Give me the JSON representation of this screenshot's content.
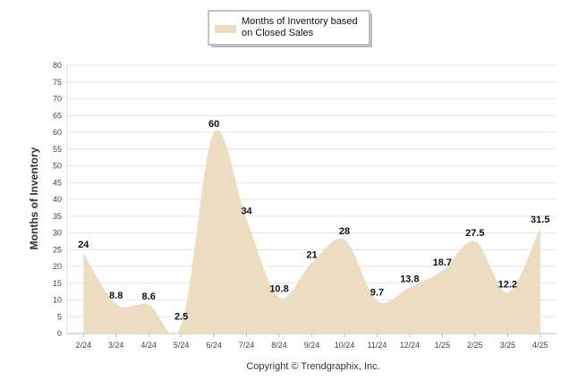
{
  "chart_data": {
    "type": "area",
    "categories": [
      "2/24",
      "3/24",
      "4/24",
      "5/24",
      "6/24",
      "7/24",
      "8/24",
      "9/24",
      "10/24",
      "11/24",
      "12/24",
      "1/25",
      "2/25",
      "3/25",
      "4/25"
    ],
    "series": [
      {
        "name": "Months of Inventory based on Closed Sales",
        "legend_lines": [
          "Months of Inventory based",
          "on Closed Sales"
        ],
        "values": [
          24,
          8.8,
          8.6,
          2.5,
          60,
          34,
          10.8,
          21,
          28,
          9.7,
          13.8,
          18.7,
          27.5,
          12.2,
          31.5
        ],
        "labels": [
          "24",
          "8.8",
          "8.6",
          "2.5",
          "60",
          "34",
          "10.8",
          "21",
          "28",
          "9.7",
          "13.8",
          "18.7",
          "27.5",
          "12.2",
          "31.5"
        ],
        "color": "#ecdcc0"
      }
    ],
    "ylabel": "Months of Inventory",
    "xlabel": "",
    "ylim": [
      0,
      80
    ],
    "yticks": [
      "0",
      "5",
      "10",
      "15",
      "20",
      "25",
      "30",
      "35",
      "40",
      "45",
      "50",
      "55",
      "60",
      "65",
      "70",
      "75",
      "80"
    ],
    "grid": true,
    "legend": "top-center"
  },
  "footer": {
    "copyright": "Copyright © Trendgraphix, Inc."
  },
  "colors": {
    "fill": "#ecdcc0",
    "grid": "#e6e6e6",
    "axis": "#bbbbbb",
    "text": "#333333"
  }
}
